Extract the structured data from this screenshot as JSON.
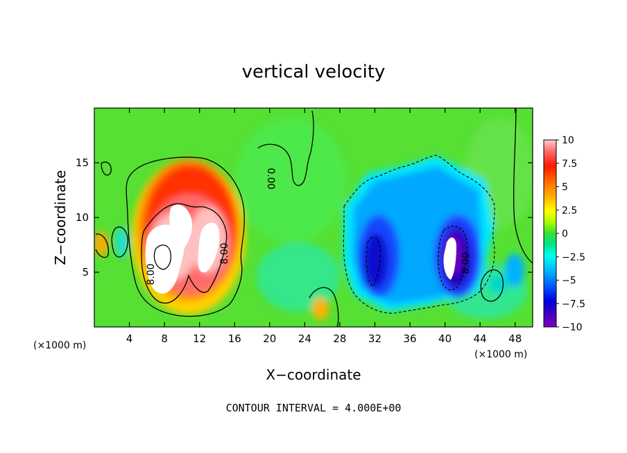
{
  "chart_data": {
    "type": "heatmap",
    "title": "vertical velocity",
    "xlabel": "X−coordinate",
    "ylabel": "Z−coordinate",
    "x_unit_left": "(×1000 m)",
    "x_unit_right": "(×1000 m)",
    "footer": "CONTOUR INTERVAL = 4.000E+00",
    "xlim": [
      0,
      50
    ],
    "ylim": [
      0,
      20
    ],
    "x_ticks": [
      4,
      8,
      12,
      16,
      20,
      24,
      28,
      32,
      36,
      40,
      44,
      48
    ],
    "y_ticks": [
      5,
      10,
      15
    ],
    "colorbar": {
      "range": [
        -10,
        10
      ],
      "ticks": [
        10,
        7.5,
        5,
        2.5,
        0,
        -2.5,
        -5,
        -7.5,
        -10
      ],
      "tick_labels": [
        "10",
        "7.5",
        "5",
        "2.5",
        "0",
        "−2.5",
        "−5",
        "−7.5",
        "−10"
      ]
    },
    "contour_labels": [
      {
        "text": "8.00",
        "x": 6.5,
        "z": 5.6
      },
      {
        "text": "8.00",
        "x": 15.2,
        "z": 7.8
      },
      {
        "text": "0.00",
        "x": 19.8,
        "z": 13.7
      },
      {
        "text": "8.00",
        "x": 42.5,
        "z": 6.5
      }
    ],
    "features": [
      {
        "kind": "updraft",
        "x": 10.5,
        "z": 9.0,
        "w_max": 10
      },
      {
        "kind": "downdraft",
        "x": 34.0,
        "z": 8.0,
        "w_min": -7.5
      },
      {
        "kind": "downdraft",
        "x": 40.5,
        "z": 7.0,
        "w_min": -10
      }
    ]
  }
}
